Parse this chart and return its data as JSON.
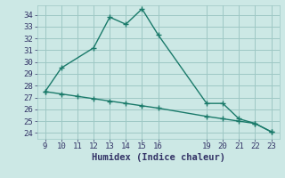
{
  "line1_x": [
    9,
    10,
    12,
    13,
    14,
    15,
    16,
    19,
    20,
    21,
    22,
    23
  ],
  "line1_y": [
    27.5,
    29.5,
    31.2,
    33.8,
    33.2,
    34.5,
    32.3,
    26.5,
    26.5,
    25.2,
    24.8,
    24.1
  ],
  "line2_x": [
    9,
    10,
    11,
    12,
    13,
    14,
    15,
    16,
    19,
    20,
    21,
    22,
    23
  ],
  "line2_y": [
    27.5,
    27.3,
    27.1,
    26.9,
    26.7,
    26.5,
    26.3,
    26.1,
    25.4,
    25.2,
    25.0,
    24.8,
    24.1
  ],
  "line_color": "#1a7a6a",
  "bg_color": "#cce8e5",
  "grid_color": "#9ec8c4",
  "xlabel": "Humidex (Indice chaleur)",
  "xlim": [
    8.5,
    23.5
  ],
  "ylim": [
    23.5,
    34.8
  ],
  "yticks": [
    24,
    25,
    26,
    27,
    28,
    29,
    30,
    31,
    32,
    33,
    34
  ],
  "xticks": [
    9,
    10,
    11,
    12,
    13,
    14,
    15,
    16,
    19,
    20,
    21,
    22,
    23
  ],
  "marker": "+",
  "markersize": 5,
  "linewidth": 1.0,
  "font_color": "#333366",
  "tick_fontsize": 6.5,
  "xlabel_fontsize": 7.5
}
